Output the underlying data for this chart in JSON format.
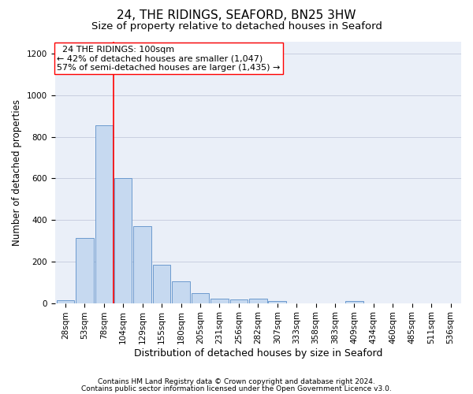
{
  "title": "24, THE RIDINGS, SEAFORD, BN25 3HW",
  "subtitle": "Size of property relative to detached houses in Seaford",
  "xlabel": "Distribution of detached houses by size in Seaford",
  "ylabel": "Number of detached properties",
  "footnote1": "Contains HM Land Registry data © Crown copyright and database right 2024.",
  "footnote2": "Contains public sector information licensed under the Open Government Licence v3.0.",
  "bin_labels": [
    "28sqm",
    "53sqm",
    "78sqm",
    "104sqm",
    "129sqm",
    "155sqm",
    "180sqm",
    "205sqm",
    "231sqm",
    "256sqm",
    "282sqm",
    "307sqm",
    "333sqm",
    "358sqm",
    "383sqm",
    "409sqm",
    "434sqm",
    "460sqm",
    "485sqm",
    "511sqm",
    "536sqm"
  ],
  "bar_values": [
    15,
    315,
    855,
    600,
    370,
    185,
    105,
    46,
    20,
    18,
    20,
    10,
    0,
    0,
    0,
    10,
    0,
    0,
    0,
    0,
    0
  ],
  "bar_color": "#c6d9f0",
  "bar_edge_color": "#5b8fc9",
  "vline_color": "red",
  "vline_x": 2.5,
  "annotation_text": "  24 THE RIDINGS: 100sqm\n← 42% of detached houses are smaller (1,047)\n57% of semi-detached houses are larger (1,435) →",
  "annotation_box_color": "white",
  "annotation_box_edge": "red",
  "ylim": [
    0,
    1260
  ],
  "yticks": [
    0,
    200,
    400,
    600,
    800,
    1000,
    1200
  ],
  "grid_color": "#c8cfe0",
  "background_color": "#eaeff8",
  "title_fontsize": 11,
  "subtitle_fontsize": 9.5,
  "annotation_fontsize": 8,
  "tick_fontsize": 7.5,
  "xlabel_fontsize": 9,
  "ylabel_fontsize": 8.5,
  "footnote_fontsize": 6.5
}
